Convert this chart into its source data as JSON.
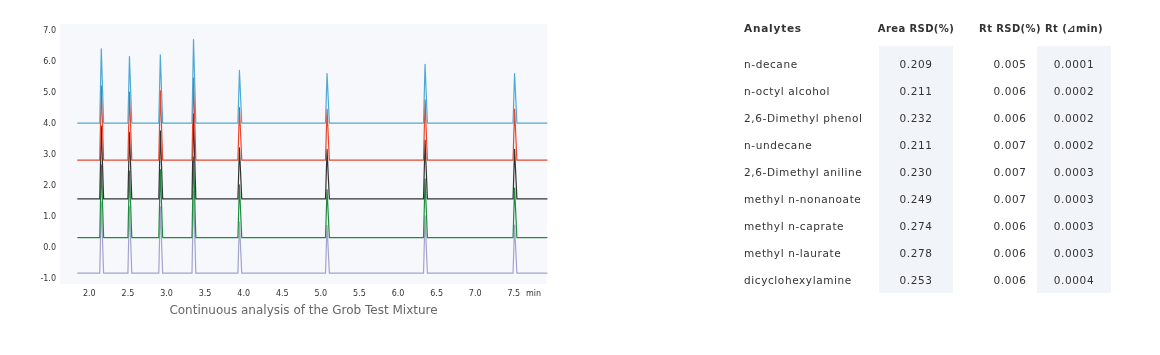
{
  "chart_data": [
    {
      "type": "line",
      "annotations": [
        "Continuous analysis of the Grob Test Mixture"
      ],
      "xlabel": "min",
      "xlim": [
        1.62,
        7.93
      ],
      "ylim": [
        -1.2,
        7.2
      ],
      "xticks": [
        {
          "value": 2,
          "label": "2.0"
        },
        2.5,
        {
          "value": 3,
          "label": "3.0"
        },
        3.5,
        {
          "value": 4,
          "label": "4.0"
        },
        4.5,
        {
          "value": 5,
          "label": "5.0"
        },
        5.5,
        {
          "value": 6,
          "label": "6.0"
        },
        6.5,
        {
          "value": 7,
          "label": "7.0"
        },
        7.5
      ],
      "yticks": [
        {
          "value": -1,
          "label": "-1.0"
        },
        {
          "value": 0,
          "label": "0.0"
        },
        {
          "value": 1,
          "label": "1.0"
        },
        {
          "value": 2,
          "label": "2.0"
        },
        {
          "value": 3,
          "label": "3.0"
        },
        {
          "value": 4,
          "label": "4.0"
        },
        {
          "value": 5,
          "label": "5.0"
        },
        {
          "value": 6,
          "label": "6.0"
        },
        {
          "value": 7,
          "label": "7.0"
        }
      ],
      "x": [
        1.85,
        2.135,
        2.155,
        2.185,
        2.5,
        2.52,
        2.55,
        2.9,
        2.92,
        2.95,
        3.33,
        3.35,
        3.38,
        3.925,
        3.945,
        3.975,
        5.06,
        5.08,
        5.11,
        6.33,
        6.35,
        6.38,
        7.49,
        7.51,
        7.54,
        7.93
      ],
      "series": [
        {
          "color": "#a3a3cf",
          "values": [
            -0.85,
            -0.85,
            1.45,
            -0.85,
            -0.85,
            1.3,
            -0.85,
            -0.85,
            1.3,
            -0.85,
            -0.85,
            1.8,
            -0.85,
            -0.85,
            0.8,
            -0.85,
            -0.85,
            0.7,
            -0.85,
            -0.85,
            1.0,
            -0.85,
            -0.85,
            0.7,
            -0.85,
            -0.85
          ]
        },
        {
          "color": "#1e8c3e",
          "values": [
            0.3,
            0.3,
            2.65,
            0.3,
            0.3,
            2.45,
            0.3,
            0.3,
            2.5,
            0.3,
            0.3,
            2.9,
            0.3,
            0.3,
            2.0,
            0.3,
            0.3,
            1.85,
            0.3,
            0.3,
            2.2,
            0.3,
            0.3,
            1.9,
            0.3,
            0.3
          ]
        },
        {
          "color": "#333333",
          "values": [
            1.55,
            1.55,
            3.9,
            1.55,
            1.55,
            3.7,
            1.55,
            1.55,
            3.75,
            1.55,
            1.55,
            4.3,
            1.55,
            1.55,
            3.2,
            1.55,
            1.55,
            3.15,
            1.55,
            1.55,
            3.45,
            1.55,
            1.55,
            3.15,
            1.55,
            1.55
          ]
        },
        {
          "color": "#e8472f",
          "values": [
            2.8,
            2.8,
            5.2,
            2.8,
            2.8,
            5.0,
            2.8,
            2.8,
            5.05,
            2.8,
            2.8,
            5.45,
            2.8,
            2.8,
            4.5,
            2.8,
            2.8,
            4.45,
            2.8,
            2.8,
            4.75,
            2.8,
            2.8,
            4.45,
            2.8,
            2.8
          ]
        },
        {
          "color": "#4ea9d4",
          "values": [
            4.0,
            4.0,
            6.4,
            4.0,
            4.0,
            6.15,
            4.0,
            4.0,
            6.2,
            4.0,
            4.0,
            6.7,
            4.0,
            4.0,
            5.7,
            4.0,
            4.0,
            5.6,
            4.0,
            4.0,
            5.9,
            4.0,
            4.0,
            5.6,
            4.0,
            4.0
          ]
        }
      ]
    },
    {
      "type": "other",
      "ylabel": "Analytes",
      "categories": [
        "n-decane",
        "n-octyl alcohol",
        "2,6-Dimethyl phenol",
        "n-undecane",
        "2,6-Dimethyl aniline",
        "methyl n-nonanoate",
        "methyl n-caprate",
        "methyl n-laurate",
        "dicyclohexylamine"
      ],
      "series": [
        {
          "name": "Area RSD(%)",
          "color": "#f1f5fa",
          "values": [
            0.209,
            0.211,
            0.232,
            0.211,
            0.23,
            0.249,
            0.274,
            0.278,
            0.253
          ],
          "value_labels": [
            "0.209",
            "0.211",
            "0.232",
            "0.211",
            "0.230",
            "0.249",
            "0.274",
            "0.278",
            "0.253"
          ]
        },
        {
          "name": "Rt RSD(%)",
          "values": [
            0.005,
            0.006,
            0.006,
            0.007,
            0.007,
            0.007,
            0.006,
            0.006,
            0.006
          ],
          "value_labels": [
            "0.005",
            "0.006",
            "0.006",
            "0.007",
            "0.007",
            "0.007",
            "0.006",
            "0.006",
            "0.006"
          ]
        },
        {
          "name": "Rt (⊿min)",
          "color": "#f1f5fa",
          "values": [
            0.0001,
            0.0002,
            0.0002,
            0.0002,
            0.0003,
            0.0003,
            0.0003,
            0.0003,
            0.0004
          ],
          "value_labels": [
            "0.0001",
            "0.0002",
            "0.0002",
            "0.0002",
            "0.0003",
            "0.0003",
            "0.0003",
            "0.0003",
            "0.0004"
          ]
        }
      ],
      "data_labels": true
    }
  ]
}
